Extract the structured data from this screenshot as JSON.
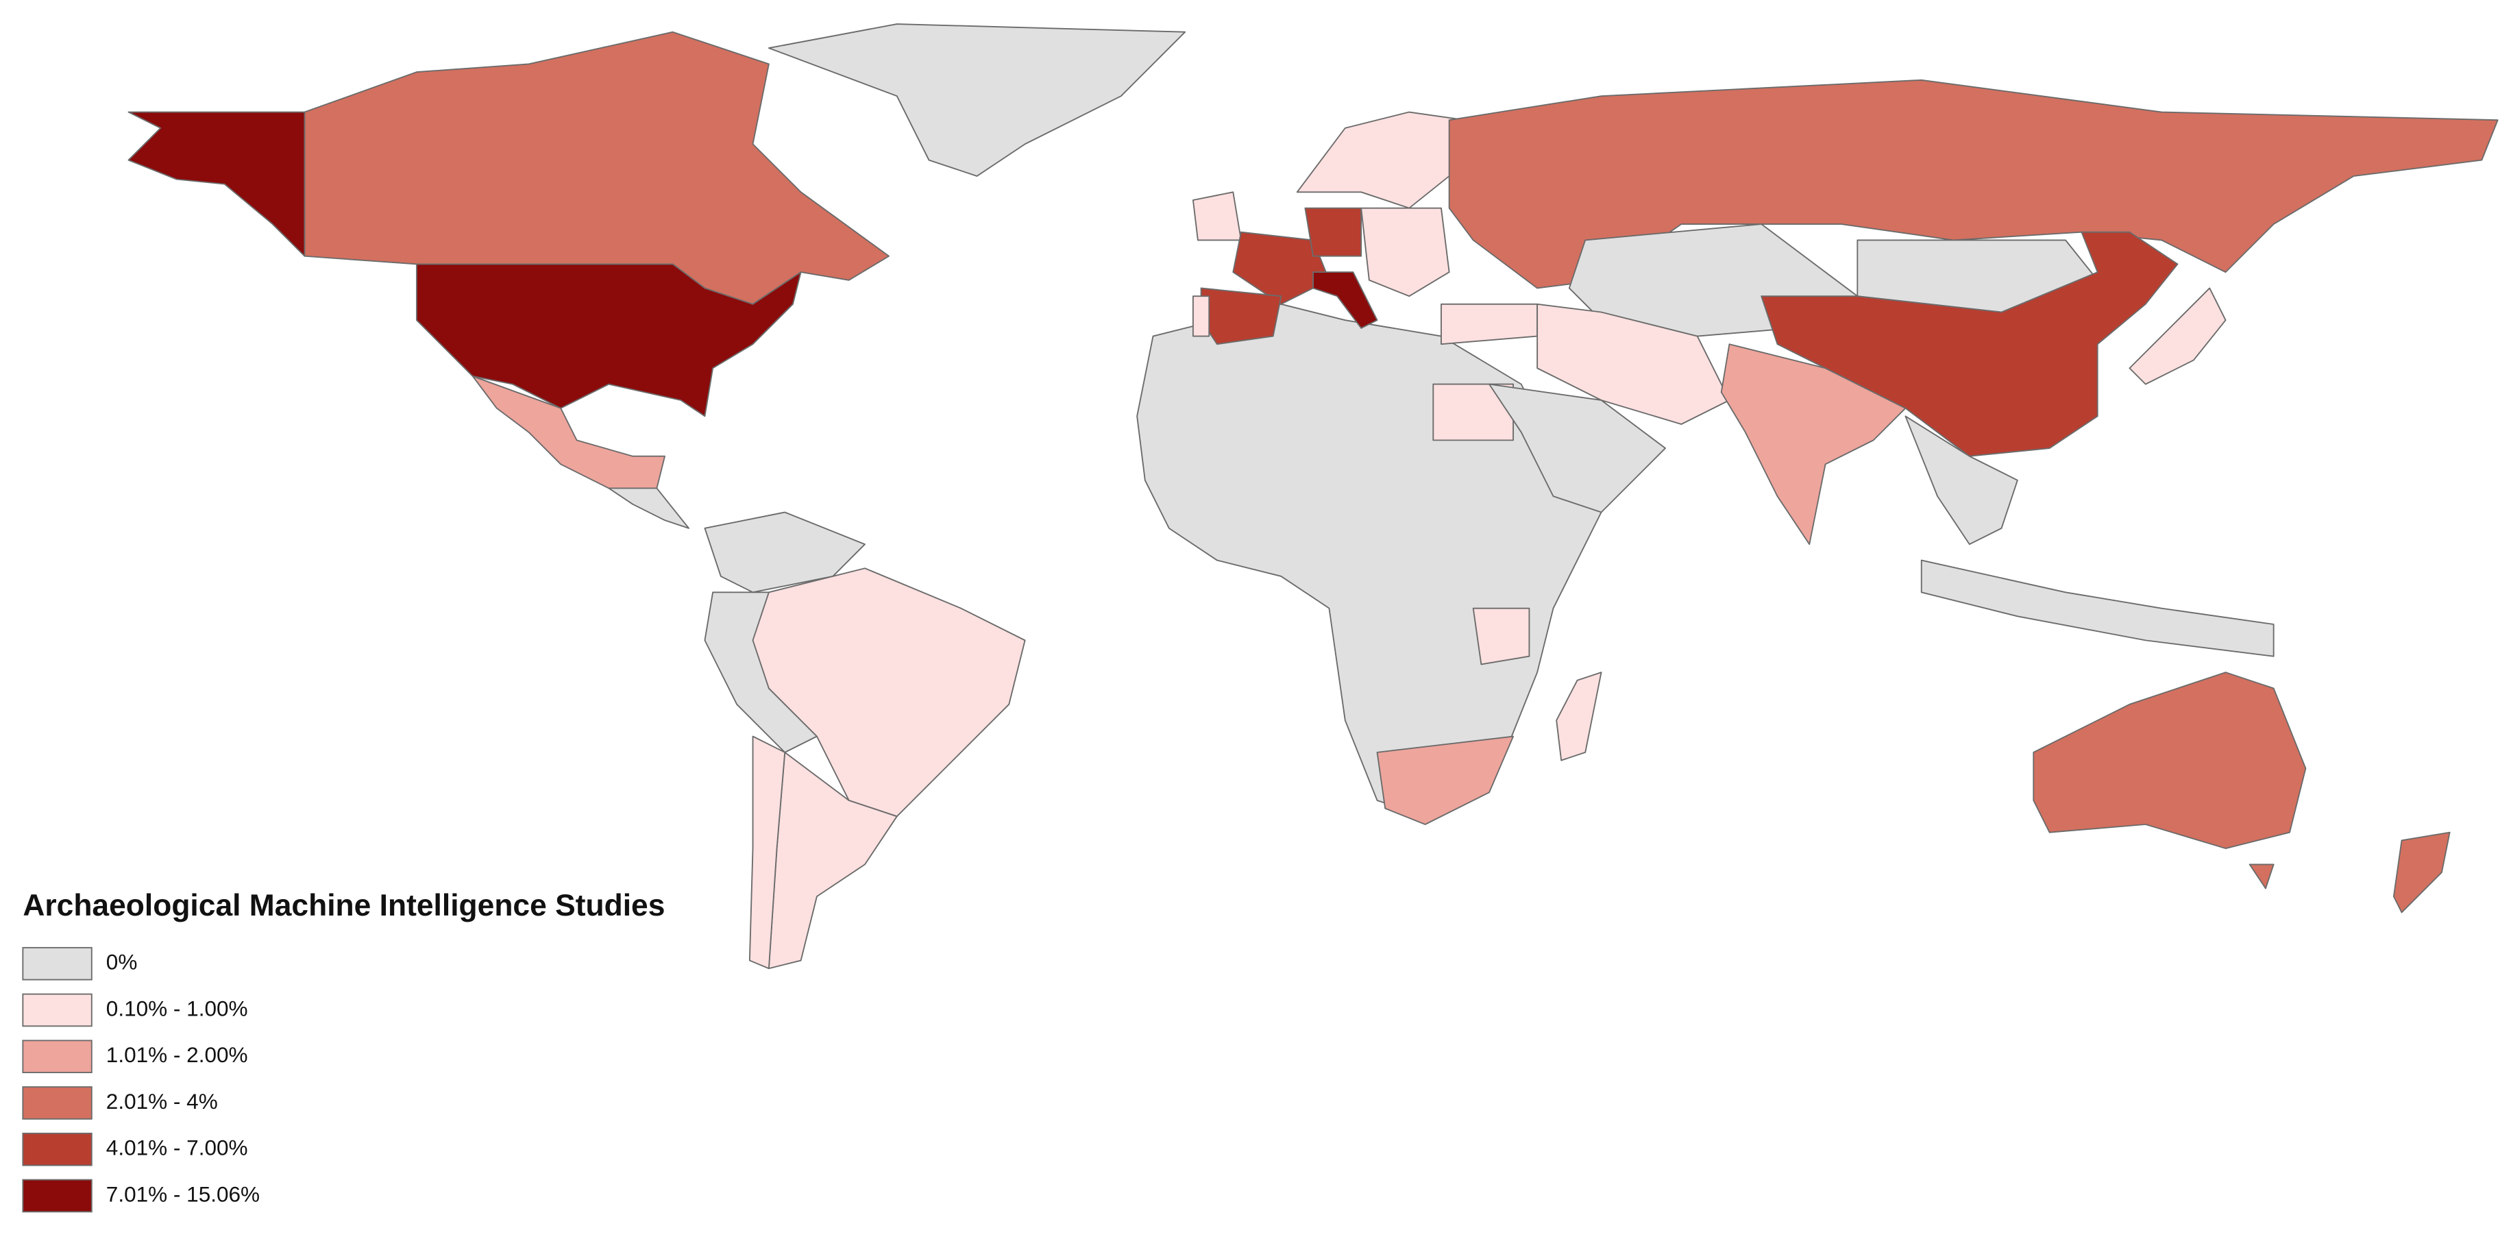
{
  "legend": {
    "title": "Archaeological Machine Intelligence Studies",
    "items": [
      {
        "label": "0%",
        "color": "#e0e0e0"
      },
      {
        "label": "0.10% - 1.00%",
        "color": "#fde0e0"
      },
      {
        "label": "1.01% - 2.00%",
        "color": "#eea59c"
      },
      {
        "label": "2.01% - 4%",
        "color": "#d4705f"
      },
      {
        "label": "4.01% - 7.00%",
        "color": "#b83e30"
      },
      {
        "label": "7.01% - 15.06%",
        "color": "#8b0a0a"
      }
    ]
  }
}
